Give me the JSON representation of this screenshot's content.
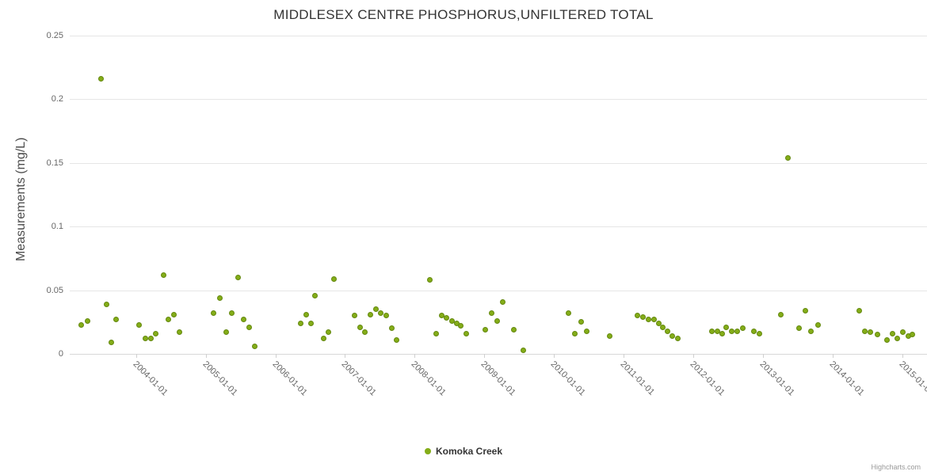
{
  "credits": "Highcharts.com",
  "colors": {
    "series": "#84ad18",
    "series_border": "#648810",
    "grid": "#e6e6e6",
    "axis_line": "#d8d8d8",
    "tick": "#d0d0d0",
    "axis_label": "#666666",
    "title": "#333333",
    "ytitle": "#4d4d4d",
    "legend_text": "#333333",
    "credits": "#999999"
  },
  "chart_data": {
    "type": "scatter",
    "title": "MIDDLESEX CENTRE PHOSPHORUS,UNFILTERED TOTAL",
    "xlabel": "",
    "ylabel": "Measurements (mg/L)",
    "ylim": [
      0,
      0.25
    ],
    "xlim_years": [
      2003.05,
      2015.35
    ],
    "grid": "horizontal-only",
    "legend_position": "bottom-center",
    "y_ticks": [
      0,
      0.05,
      0.1,
      0.15,
      0.2,
      0.25
    ],
    "y_tick_labels": [
      "0",
      "0.05",
      "0.1",
      "0.15",
      "0.2",
      "0.25"
    ],
    "x_ticks": [
      {
        "label": "2004-01-01",
        "year": 2004
      },
      {
        "label": "2005-01-01",
        "year": 2005
      },
      {
        "label": "2006-01-01",
        "year": 2006
      },
      {
        "label": "2007-01-01",
        "year": 2007
      },
      {
        "label": "2008-01-01",
        "year": 2008
      },
      {
        "label": "2009-01-01",
        "year": 2009
      },
      {
        "label": "2010-01-01",
        "year": 2010
      },
      {
        "label": "2011-01-01",
        "year": 2011
      },
      {
        "label": "2012-01-01",
        "year": 2012
      },
      {
        "label": "2013-01-01",
        "year": 2013
      },
      {
        "label": "2014-01-01",
        "year": 2014
      },
      {
        "label": "2015-01-01",
        "year": 2015
      }
    ],
    "series": [
      {
        "name": "Komoka Creek",
        "color": "#84ad18",
        "points": [
          [
            2003.22,
            0.023
          ],
          [
            2003.31,
            0.026
          ],
          [
            2003.5,
            0.216
          ],
          [
            2003.58,
            0.039
          ],
          [
            2003.65,
            0.009
          ],
          [
            2003.72,
            0.027
          ],
          [
            2004.04,
            0.023
          ],
          [
            2004.13,
            0.012
          ],
          [
            2004.21,
            0.012
          ],
          [
            2004.28,
            0.016
          ],
          [
            2004.4,
            0.062
          ],
          [
            2004.47,
            0.027
          ],
          [
            2004.54,
            0.031
          ],
          [
            2004.62,
            0.017
          ],
          [
            2005.11,
            0.032
          ],
          [
            2005.2,
            0.044
          ],
          [
            2005.29,
            0.017
          ],
          [
            2005.37,
            0.032
          ],
          [
            2005.46,
            0.06
          ],
          [
            2005.54,
            0.027
          ],
          [
            2005.62,
            0.021
          ],
          [
            2005.71,
            0.006
          ],
          [
            2006.36,
            0.024
          ],
          [
            2006.44,
            0.031
          ],
          [
            2006.51,
            0.024
          ],
          [
            2006.57,
            0.046
          ],
          [
            2006.69,
            0.012
          ],
          [
            2006.76,
            0.017
          ],
          [
            2006.84,
            0.059
          ],
          [
            2007.14,
            0.03
          ],
          [
            2007.22,
            0.021
          ],
          [
            2007.29,
            0.017
          ],
          [
            2007.36,
            0.031
          ],
          [
            2007.44,
            0.035
          ],
          [
            2007.51,
            0.032
          ],
          [
            2007.59,
            0.03
          ],
          [
            2007.67,
            0.02
          ],
          [
            2007.74,
            0.011
          ],
          [
            2008.22,
            0.058
          ],
          [
            2008.31,
            0.016
          ],
          [
            2008.39,
            0.03
          ],
          [
            2008.46,
            0.028
          ],
          [
            2008.53,
            0.026
          ],
          [
            2008.6,
            0.024
          ],
          [
            2008.66,
            0.022
          ],
          [
            2008.74,
            0.016
          ],
          [
            2009.01,
            0.019
          ],
          [
            2009.1,
            0.032
          ],
          [
            2009.18,
            0.026
          ],
          [
            2009.26,
            0.041
          ],
          [
            2009.42,
            0.019
          ],
          [
            2009.56,
            0.003
          ],
          [
            2010.21,
            0.032
          ],
          [
            2010.3,
            0.016
          ],
          [
            2010.39,
            0.025
          ],
          [
            2010.47,
            0.018
          ],
          [
            2010.8,
            0.014
          ],
          [
            2011.2,
            0.03
          ],
          [
            2011.28,
            0.029
          ],
          [
            2011.35,
            0.027
          ],
          [
            2011.43,
            0.027
          ],
          [
            2011.5,
            0.024
          ],
          [
            2011.56,
            0.021
          ],
          [
            2011.63,
            0.018
          ],
          [
            2011.7,
            0.014
          ],
          [
            2011.78,
            0.012
          ],
          [
            2012.26,
            0.018
          ],
          [
            2012.34,
            0.018
          ],
          [
            2012.41,
            0.016
          ],
          [
            2012.47,
            0.021
          ],
          [
            2012.55,
            0.018
          ],
          [
            2012.63,
            0.018
          ],
          [
            2012.71,
            0.02
          ],
          [
            2012.87,
            0.018
          ],
          [
            2012.95,
            0.016
          ],
          [
            2013.25,
            0.031
          ],
          [
            2013.36,
            0.154
          ],
          [
            2013.51,
            0.02
          ],
          [
            2013.61,
            0.034
          ],
          [
            2013.69,
            0.018
          ],
          [
            2013.79,
            0.023
          ],
          [
            2014.38,
            0.034
          ],
          [
            2014.46,
            0.018
          ],
          [
            2014.54,
            0.017
          ],
          [
            2014.64,
            0.015
          ],
          [
            2014.78,
            0.011
          ],
          [
            2014.85,
            0.016
          ],
          [
            2014.92,
            0.012
          ],
          [
            2015.0,
            0.017
          ],
          [
            2015.08,
            0.014
          ],
          [
            2015.14,
            0.015
          ]
        ]
      }
    ]
  }
}
